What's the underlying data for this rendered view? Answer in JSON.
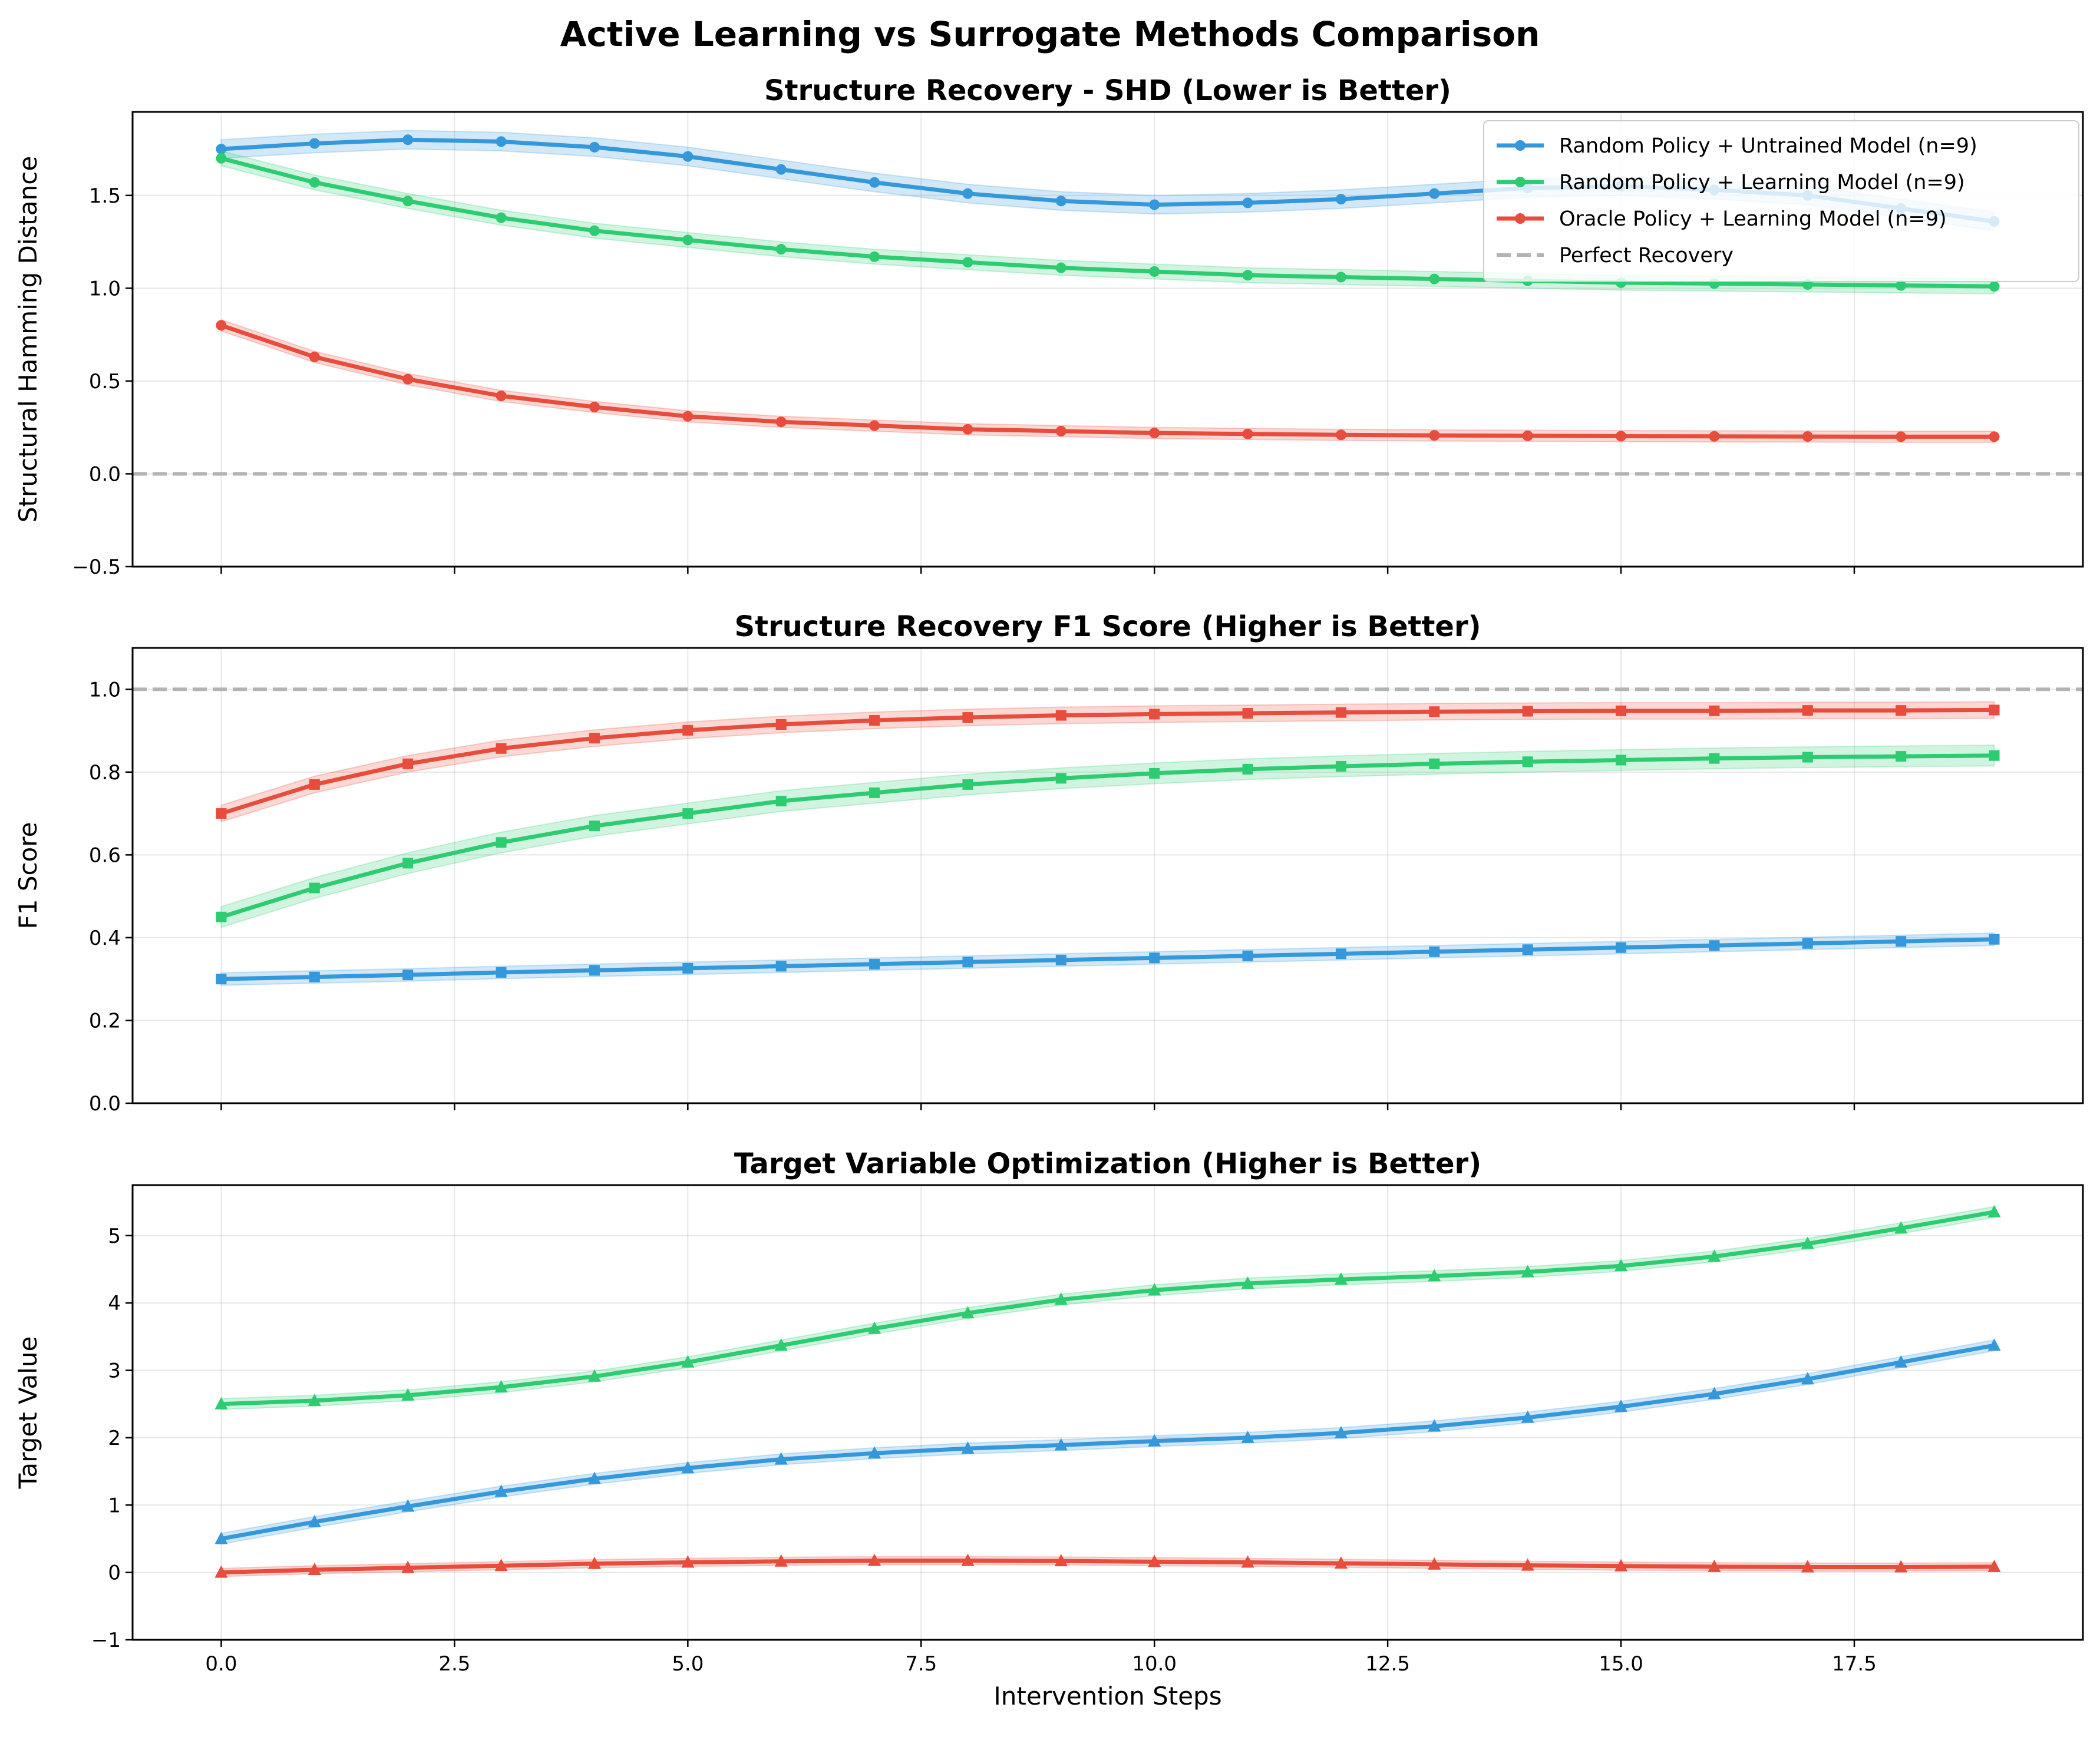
{
  "figure_title": "Active Learning vs Surrogate Methods Comparison",
  "colors": {
    "blue": "#3498db",
    "green": "#2ecc71",
    "red": "#e74c3c",
    "reference": "#b3b3b3"
  },
  "legend": {
    "items": [
      "Random Policy + Untrained Model (n=9)",
      "Random Policy + Learning Model (n=9)",
      "Oracle Policy + Learning Model (n=9)",
      "Perfect Recovery"
    ]
  },
  "chart_data": [
    {
      "type": "line",
      "title": "Structure Recovery - SHD (Lower is Better)",
      "xlabel": "",
      "ylabel": "Structural Hamming Distance",
      "xlim": [
        -0.95,
        19.95
      ],
      "ylim": [
        -0.5,
        1.95
      ],
      "xticks": [
        0,
        2.5,
        5,
        7.5,
        10,
        12.5,
        15,
        17.5
      ],
      "xtick_labels": [
        "0.0",
        "2.5",
        "5.0",
        "7.5",
        "10.0",
        "12.5",
        "15.0",
        "17.5"
      ],
      "yticks": [
        -0.5,
        0,
        0.5,
        1,
        1.5
      ],
      "ytick_labels": [
        "−0.5",
        "0.0",
        "0.5",
        "1.0",
        "1.5"
      ],
      "marker": "circle",
      "reference_line": 0,
      "x": [
        0,
        1,
        2,
        3,
        4,
        5,
        6,
        7,
        8,
        9,
        10,
        11,
        12,
        13,
        14,
        15,
        16,
        17,
        18,
        19
      ],
      "series": [
        {
          "name": "Random Policy + Untrained Model (n=9)",
          "color": "#3498db",
          "band": 0.05,
          "values": [
            1.75,
            1.78,
            1.8,
            1.79,
            1.76,
            1.71,
            1.64,
            1.57,
            1.51,
            1.47,
            1.45,
            1.46,
            1.48,
            1.51,
            1.54,
            1.55,
            1.53,
            1.5,
            1.43,
            1.36
          ]
        },
        {
          "name": "Random Policy + Learning Model (n=9)",
          "color": "#2ecc71",
          "band": 0.04,
          "values": [
            1.7,
            1.57,
            1.47,
            1.38,
            1.31,
            1.26,
            1.21,
            1.17,
            1.14,
            1.11,
            1.09,
            1.07,
            1.06,
            1.05,
            1.04,
            1.03,
            1.025,
            1.02,
            1.015,
            1.01
          ]
        },
        {
          "name": "Oracle Policy + Learning Model (n=9)",
          "color": "#e74c3c",
          "band": 0.03,
          "values": [
            0.8,
            0.63,
            0.51,
            0.42,
            0.36,
            0.31,
            0.28,
            0.26,
            0.24,
            0.23,
            0.22,
            0.215,
            0.21,
            0.207,
            0.205,
            0.203,
            0.202,
            0.201,
            0.2,
            0.2
          ]
        }
      ]
    },
    {
      "type": "line",
      "title": "Structure Recovery F1 Score (Higher is Better)",
      "xlabel": "",
      "ylabel": "F1 Score",
      "xlim": [
        -0.95,
        19.95
      ],
      "ylim": [
        0,
        1.1
      ],
      "xticks": [
        0,
        2.5,
        5,
        7.5,
        10,
        12.5,
        15,
        17.5
      ],
      "xtick_labels": [
        "0.0",
        "2.5",
        "5.0",
        "7.5",
        "10.0",
        "12.5",
        "15.0",
        "17.5"
      ],
      "yticks": [
        0,
        0.2,
        0.4,
        0.6,
        0.8,
        1.0
      ],
      "ytick_labels": [
        "0.0",
        "0.2",
        "0.4",
        "0.6",
        "0.8",
        "1.0"
      ],
      "marker": "square",
      "reference_line": 1.0,
      "x": [
        0,
        1,
        2,
        3,
        4,
        5,
        6,
        7,
        8,
        9,
        10,
        11,
        12,
        13,
        14,
        15,
        16,
        17,
        18,
        19
      ],
      "series": [
        {
          "name": "Random Policy + Untrained Model (n=9)",
          "color": "#3498db",
          "band": 0.015,
          "values": [
            0.3,
            0.305,
            0.31,
            0.316,
            0.321,
            0.326,
            0.331,
            0.336,
            0.341,
            0.346,
            0.351,
            0.356,
            0.361,
            0.366,
            0.371,
            0.376,
            0.381,
            0.386,
            0.391,
            0.396
          ]
        },
        {
          "name": "Random Policy + Learning Model (n=9)",
          "color": "#2ecc71",
          "band": 0.025,
          "values": [
            0.45,
            0.52,
            0.58,
            0.63,
            0.67,
            0.7,
            0.73,
            0.75,
            0.77,
            0.785,
            0.797,
            0.807,
            0.814,
            0.82,
            0.825,
            0.829,
            0.833,
            0.836,
            0.838,
            0.84
          ]
        },
        {
          "name": "Oracle Policy + Learning Model (n=9)",
          "color": "#e74c3c",
          "band": 0.02,
          "values": [
            0.7,
            0.77,
            0.82,
            0.857,
            0.882,
            0.901,
            0.915,
            0.925,
            0.932,
            0.937,
            0.94,
            0.942,
            0.944,
            0.946,
            0.947,
            0.948,
            0.948,
            0.949,
            0.949,
            0.95
          ]
        }
      ]
    },
    {
      "type": "line",
      "title": "Target Variable Optimization (Higher is Better)",
      "xlabel": "Intervention Steps",
      "ylabel": "Target Value",
      "xlim": [
        -0.95,
        19.95
      ],
      "ylim": [
        -1,
        5.75
      ],
      "xticks": [
        0,
        2.5,
        5,
        7.5,
        10,
        12.5,
        15,
        17.5
      ],
      "xtick_labels": [
        "0.0",
        "2.5",
        "5.0",
        "7.5",
        "10.0",
        "12.5",
        "15.0",
        "17.5"
      ],
      "yticks": [
        -1,
        0,
        1,
        2,
        3,
        4,
        5
      ],
      "ytick_labels": [
        "−1",
        "0",
        "1",
        "2",
        "3",
        "4",
        "5"
      ],
      "marker": "triangle",
      "reference_line": null,
      "x": [
        0,
        1,
        2,
        3,
        4,
        5,
        6,
        7,
        8,
        9,
        10,
        11,
        12,
        13,
        14,
        15,
        16,
        17,
        18,
        19
      ],
      "series": [
        {
          "name": "Random Policy + Untrained Model (n=9)",
          "color": "#3498db",
          "band": 0.08,
          "values": [
            0.5,
            0.75,
            0.98,
            1.2,
            1.39,
            1.55,
            1.68,
            1.77,
            1.84,
            1.89,
            1.95,
            2.0,
            2.07,
            2.17,
            2.3,
            2.46,
            2.65,
            2.87,
            3.12,
            3.37
          ]
        },
        {
          "name": "Random Policy + Learning Model (n=9)",
          "color": "#2ecc71",
          "band": 0.08,
          "values": [
            2.5,
            2.55,
            2.63,
            2.75,
            2.91,
            3.12,
            3.37,
            3.62,
            3.85,
            4.05,
            4.19,
            4.29,
            4.35,
            4.4,
            4.46,
            4.55,
            4.69,
            4.88,
            5.11,
            5.35
          ]
        },
        {
          "name": "Oracle Policy + Learning Model (n=9)",
          "color": "#e74c3c",
          "band": 0.06,
          "values": [
            0.0,
            0.04,
            0.07,
            0.1,
            0.13,
            0.15,
            0.165,
            0.175,
            0.175,
            0.17,
            0.16,
            0.15,
            0.135,
            0.12,
            0.105,
            0.095,
            0.085,
            0.08,
            0.08,
            0.085
          ]
        }
      ]
    }
  ]
}
